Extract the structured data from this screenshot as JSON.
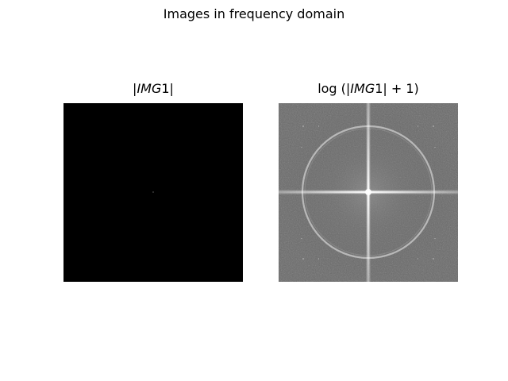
{
  "figure": {
    "title": "Images in frequency domain"
  },
  "panels": [
    {
      "title_prefix": "|",
      "title_italic": "IMG",
      "title_suffix": "1|",
      "image": "black-magnitude-spectrum"
    },
    {
      "title_prefix": "log (|",
      "title_italic": "IMG",
      "title_suffix": "1| + 1)",
      "image": "log-magnitude-spectrum-ring-and-cross"
    }
  ],
  "colors": {
    "background": "#ffffff",
    "magnitude_bg": "#000000",
    "log_bg": "#6a6a6a",
    "ring": "#c8c8c8",
    "axis_lines": "#e6e6e6"
  }
}
